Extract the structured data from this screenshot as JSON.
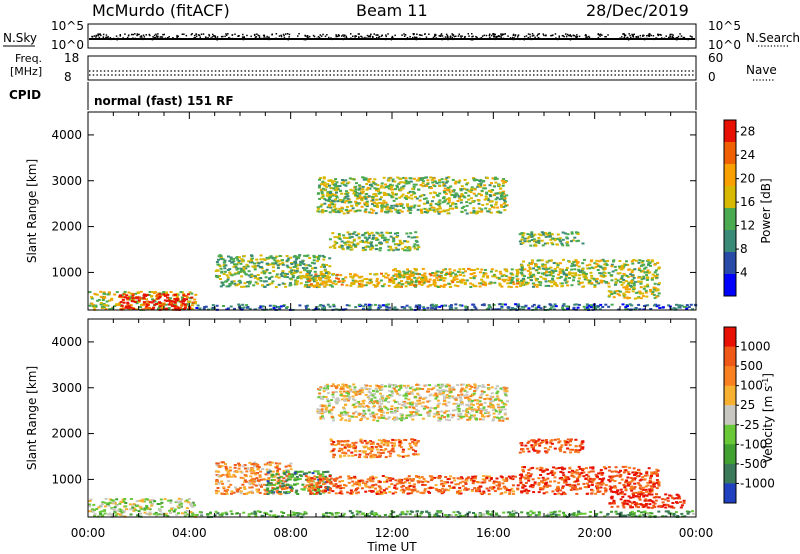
{
  "header": {
    "station": "McMurdo (fitACF)",
    "beam": "Beam 11",
    "date": "28/Dec/2019"
  },
  "status_panels": {
    "nsky_label": "N.Sky",
    "nsky_ticks": [
      "10^5",
      "10^0"
    ],
    "nsearch_label": "N.Search",
    "nsearch_ticks": [
      "10^5",
      "10^0"
    ],
    "freq_label_1": "Freq.",
    "freq_label_2": "[MHz]",
    "freq_ticks": [
      "18",
      "8"
    ],
    "nave_label": "Nave",
    "nave_ticks": [
      "60",
      "0"
    ],
    "cpid_label": "CPID",
    "cpid_value": "normal (fast) 151 RF"
  },
  "chart_data": [
    {
      "type": "heatmap",
      "name": "power",
      "ylabel": "Slant Range [km]",
      "xlabel": "Time UT",
      "xticks": [
        "00:00",
        "04:00",
        "08:00",
        "12:00",
        "16:00",
        "20:00",
        "00:00"
      ],
      "xlim_hours": [
        0,
        24
      ],
      "yticks": [
        "1000",
        "2000",
        "3000",
        "4000"
      ],
      "ylim_km": [
        180,
        4500
      ],
      "colorbar": {
        "label": "Power [dB]",
        "ticks": [
          "4",
          "8",
          "12",
          "16",
          "20",
          "24",
          "28"
        ],
        "range": [
          0,
          30
        ],
        "colors": [
          "#0000ff",
          "#2a4aa8",
          "#3a8a78",
          "#4aaa50",
          "#d8b800",
          "#f8a000",
          "#f06000",
          "#e81000"
        ]
      },
      "echo_regions": [
        {
          "t": [
            0.0,
            4.2
          ],
          "r": [
            200,
            600
          ],
          "level": 0.55
        },
        {
          "t": [
            1.2,
            4.1
          ],
          "r": [
            200,
            550
          ],
          "level": 0.97
        },
        {
          "t": [
            4.2,
            24.0
          ],
          "r": [
            200,
            330
          ],
          "level": 0.25
        },
        {
          "t": [
            5.0,
            9.5
          ],
          "r": [
            700,
            1400
          ],
          "level": 0.45
        },
        {
          "t": [
            8.5,
            13.5
          ],
          "r": [
            700,
            1000
          ],
          "level": 0.6
        },
        {
          "t": [
            9.0,
            16.5
          ],
          "r": [
            2300,
            3100
          ],
          "level": 0.5
        },
        {
          "t": [
            9.5,
            13.0
          ],
          "r": [
            1500,
            1900
          ],
          "level": 0.45
        },
        {
          "t": [
            12.0,
            17.0
          ],
          "r": [
            700,
            1100
          ],
          "level": 0.6
        },
        {
          "t": [
            17.0,
            22.5
          ],
          "r": [
            700,
            1300
          ],
          "level": 0.5
        },
        {
          "t": [
            17.0,
            19.5
          ],
          "r": [
            1600,
            1900
          ],
          "level": 0.45
        },
        {
          "t": [
            20.5,
            22.5
          ],
          "r": [
            450,
            700
          ],
          "level": 0.55
        }
      ]
    },
    {
      "type": "heatmap",
      "name": "velocity",
      "ylabel": "Slant Range [km]",
      "xlabel": "Time UT",
      "xticks": [
        "00:00",
        "04:00",
        "08:00",
        "12:00",
        "16:00",
        "20:00",
        "00:00"
      ],
      "xlim_hours": [
        0,
        24
      ],
      "yticks": [
        "1000",
        "2000",
        "3000",
        "4000"
      ],
      "ylim_km": [
        180,
        4500
      ],
      "colorbar": {
        "label": "Velocity [m s^-1]",
        "ticks": [
          "1000",
          "500",
          "100",
          "25",
          "-25",
          "-100",
          "-500",
          "-1000"
        ],
        "colors": [
          "#2040c0",
          "#3a7a58",
          "#40a030",
          "#68c838",
          "#c8c8c0",
          "#f8b030",
          "#f88020",
          "#f05818",
          "#e81000"
        ]
      },
      "echo_regions": [
        {
          "t": [
            0.0,
            4.2
          ],
          "r": [
            200,
            600
          ],
          "level": 0.45
        },
        {
          "t": [
            4.2,
            24.0
          ],
          "r": [
            200,
            330
          ],
          "level": 0.3
        },
        {
          "t": [
            5.0,
            8.0
          ],
          "r": [
            700,
            1400
          ],
          "level": 0.7
        },
        {
          "t": [
            7.0,
            9.5
          ],
          "r": [
            700,
            1200
          ],
          "level": 0.25
        },
        {
          "t": [
            9.0,
            16.5
          ],
          "r": [
            2300,
            3100
          ],
          "level": 0.55
        },
        {
          "t": [
            9.5,
            13.0
          ],
          "r": [
            1500,
            1900
          ],
          "level": 0.75
        },
        {
          "t": [
            8.5,
            17.0
          ],
          "r": [
            700,
            1100
          ],
          "level": 0.8
        },
        {
          "t": [
            17.0,
            22.5
          ],
          "r": [
            700,
            1300
          ],
          "level": 0.85
        },
        {
          "t": [
            17.0,
            19.5
          ],
          "r": [
            1600,
            1900
          ],
          "level": 0.85
        },
        {
          "t": [
            20.5,
            23.5
          ],
          "r": [
            400,
            700
          ],
          "level": 0.95
        }
      ]
    }
  ],
  "axis": {
    "time_label": "Time UT"
  }
}
